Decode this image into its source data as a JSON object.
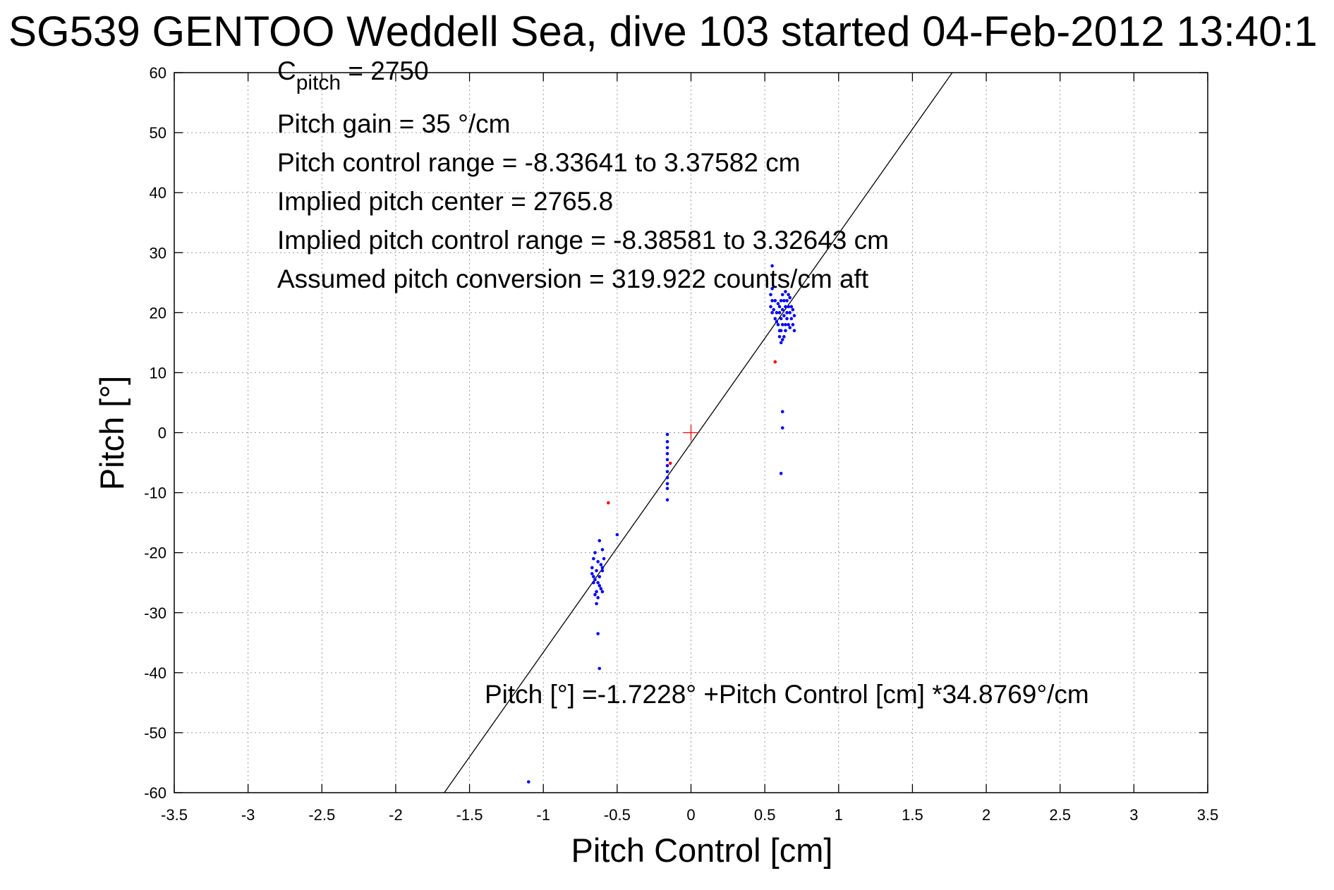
{
  "chart_data": {
    "type": "scatter",
    "title": "SG539 GENTOO Weddell Sea, dive 103 started 04-Feb-2012 13:40:1",
    "xlabel": "Pitch Control [cm]",
    "ylabel": "Pitch [°]",
    "xlim": [
      -3.5,
      3.5
    ],
    "ylim": [
      -60,
      60
    ],
    "x_ticks": [
      -3.5,
      -3,
      -2.5,
      -2,
      -1.5,
      -1,
      -0.5,
      0,
      0.5,
      1,
      1.5,
      2,
      2.5,
      3,
      3.5
    ],
    "x_tick_labels": [
      "-3.5",
      "-3",
      "-2.5",
      "-2",
      "-1.5",
      "-1",
      "-0.5",
      "0",
      "0.5",
      "1",
      "1.5",
      "2",
      "2.5",
      "3",
      "3.5"
    ],
    "y_ticks": [
      60,
      50,
      40,
      30,
      20,
      10,
      0,
      -10,
      -20,
      -30,
      -40,
      -50,
      -60
    ],
    "y_tick_labels": [
      "60",
      "50",
      "40",
      "30",
      "20",
      "10",
      "0",
      "-10",
      "-20",
      "-30",
      "-40",
      "-50",
      "-60"
    ],
    "grid": true,
    "annotations": {
      "c_pitch_prefix": "C",
      "c_pitch_sub": "pitch",
      "c_pitch_value": " = 2750",
      "lines": [
        "Pitch gain = 35 °/cm",
        "Pitch control range = -8.33641 to 3.37582 cm",
        "Implied pitch center = 2765.8",
        "Implied pitch control range = -8.38581 to 3.32643 cm",
        "Assumed pitch conversion = 319.922 counts/cm aft"
      ],
      "fit_equation": "Pitch [°] =-1.7228° +Pitch Control [cm] *34.8769°/cm"
    },
    "fit_line": {
      "intercept": -1.7228,
      "slope": 34.8769,
      "color": "#000000"
    },
    "center_marker": {
      "x": 0,
      "y": 0,
      "color": "#ff0000"
    },
    "series": [
      {
        "color": "#0000ff",
        "points": [
          [
            0.55,
            27.8
          ],
          [
            0.55,
            24
          ],
          [
            0.54,
            23
          ],
          [
            0.55,
            22
          ],
          [
            0.54,
            21
          ],
          [
            0.55,
            20
          ],
          [
            0.56,
            20.5
          ],
          [
            0.57,
            19
          ],
          [
            0.58,
            18.5
          ],
          [
            0.59,
            18
          ],
          [
            0.6,
            17
          ],
          [
            0.6,
            16
          ],
          [
            0.61,
            15
          ],
          [
            0.62,
            15.5
          ],
          [
            0.63,
            16
          ],
          [
            0.64,
            17
          ],
          [
            0.6,
            21
          ],
          [
            0.61,
            22
          ],
          [
            0.62,
            20.5
          ],
          [
            0.63,
            19.5
          ],
          [
            0.64,
            21
          ],
          [
            0.65,
            22
          ],
          [
            0.66,
            23
          ],
          [
            0.66,
            21
          ],
          [
            0.67,
            20
          ],
          [
            0.68,
            19
          ],
          [
            0.69,
            18
          ],
          [
            0.7,
            17
          ],
          [
            0.68,
            21
          ],
          [
            0.67,
            22.5
          ],
          [
            0.65,
            19
          ],
          [
            0.64,
            18
          ],
          [
            0.63,
            22
          ],
          [
            0.62,
            23
          ],
          [
            0.61,
            19
          ],
          [
            0.6,
            20
          ],
          [
            0.59,
            21.5
          ],
          [
            0.58,
            20
          ],
          [
            0.57,
            22
          ],
          [
            0.66,
            18
          ],
          [
            0.67,
            17.5
          ],
          [
            0.7,
            19.5
          ],
          [
            0.69,
            20.5
          ],
          [
            0.65,
            20
          ],
          [
            0.64,
            23.5
          ],
          [
            0.62,
            18
          ],
          [
            0.61,
            17
          ],
          [
            0.62,
            3.5
          ],
          [
            0.62,
            0.8
          ],
          [
            0.61,
            -6.8
          ],
          [
            -0.16,
            -0.3
          ],
          [
            -0.16,
            -1.5
          ],
          [
            -0.16,
            -2.5
          ],
          [
            -0.16,
            -3.5
          ],
          [
            -0.16,
            -4.5
          ],
          [
            -0.16,
            -5.5
          ],
          [
            -0.16,
            -6.5
          ],
          [
            -0.16,
            -7.5
          ],
          [
            -0.16,
            -8.5
          ],
          [
            -0.16,
            -9.3
          ],
          [
            -0.16,
            -11.2
          ],
          [
            -0.5,
            -17
          ],
          [
            -0.62,
            -18
          ],
          [
            -0.6,
            -19.5
          ],
          [
            -0.65,
            -20
          ],
          [
            -0.66,
            -21
          ],
          [
            -0.63,
            -21.5
          ],
          [
            -0.61,
            -22
          ],
          [
            -0.6,
            -22.5
          ],
          [
            -0.64,
            -23
          ],
          [
            -0.67,
            -23.5
          ],
          [
            -0.66,
            -24
          ],
          [
            -0.65,
            -24.5
          ],
          [
            -0.63,
            -25
          ],
          [
            -0.62,
            -25.5
          ],
          [
            -0.61,
            -26
          ],
          [
            -0.64,
            -26.5
          ],
          [
            -0.65,
            -27
          ],
          [
            -0.63,
            -27.5
          ],
          [
            -0.64,
            -28.5
          ],
          [
            -0.59,
            -21
          ],
          [
            -0.6,
            -23
          ],
          [
            -0.62,
            -24
          ],
          [
            -0.66,
            -25
          ],
          [
            -0.67,
            -22.5
          ],
          [
            -0.6,
            -26.5
          ],
          [
            -0.63,
            -33.5
          ],
          [
            -0.62,
            -39.3
          ],
          [
            -1.1,
            -58.2
          ]
        ]
      },
      {
        "color": "#ff0000",
        "points": [
          [
            0.57,
            11.8
          ],
          [
            -0.14,
            -5.1
          ],
          [
            -0.56,
            -11.7
          ]
        ]
      }
    ]
  }
}
